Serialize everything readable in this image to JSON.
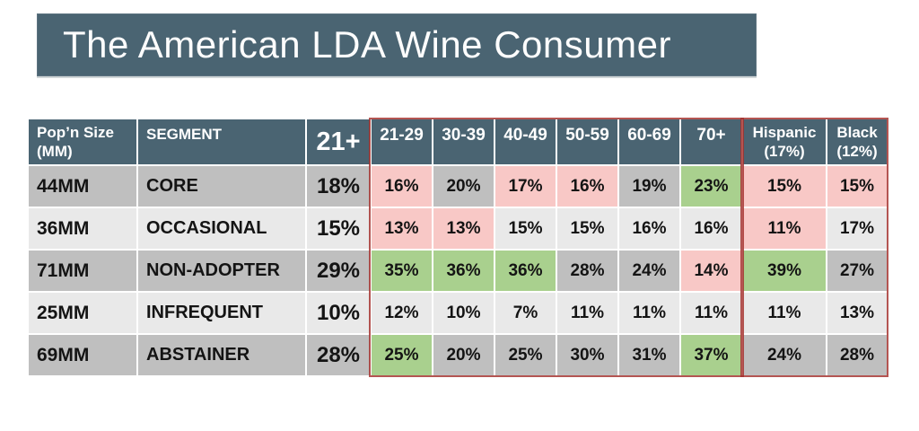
{
  "slide": {
    "title": "The American LDA Wine Consumer"
  },
  "colors": {
    "banner_bg": "#4A6472",
    "header_bg": "#4A6472",
    "row_dark": "#BFBFBF",
    "row_light": "#E9E9E9",
    "highlight_pink": "#F8C8C6",
    "highlight_green": "#A9D08E",
    "red_outline": "#A4302C",
    "title_text": "#FFFFFF"
  },
  "chart_data": {
    "type": "table",
    "title": "The American LDA Wine Consumer",
    "columns": [
      "Pop’n Size (MM)",
      "SEGMENT",
      "21+",
      "21-29",
      "30-39",
      "40-49",
      "50-59",
      "60-69",
      "70+",
      "Hispanic (17%)",
      "Black (12%)"
    ],
    "header": {
      "popn_line1": "Pop’n Size",
      "popn_line2": "(MM)",
      "segment": "SEGMENT",
      "total": "21+",
      "ages": [
        "21-29",
        "30-39",
        "40-49",
        "50-59",
        "60-69",
        "70+"
      ],
      "hispanic_line1": "Hispanic",
      "hispanic_line2": "(17%)",
      "black_line1": "Black",
      "black_line2": "(12%)"
    },
    "rows": [
      {
        "pop": "44MM",
        "segment": "CORE",
        "total": "18%",
        "cells": [
          {
            "v": "16%",
            "hl": "pink"
          },
          {
            "v": "20%",
            "hl": "none"
          },
          {
            "v": "17%",
            "hl": "pink"
          },
          {
            "v": "16%",
            "hl": "pink"
          },
          {
            "v": "19%",
            "hl": "none"
          },
          {
            "v": "23%",
            "hl": "green"
          },
          {
            "v": "15%",
            "hl": "pink"
          },
          {
            "v": "15%",
            "hl": "pink"
          }
        ]
      },
      {
        "pop": "36MM",
        "segment": "OCCASIONAL",
        "total": "15%",
        "cells": [
          {
            "v": "13%",
            "hl": "pink"
          },
          {
            "v": "13%",
            "hl": "pink"
          },
          {
            "v": "15%",
            "hl": "none"
          },
          {
            "v": "15%",
            "hl": "none"
          },
          {
            "v": "16%",
            "hl": "none"
          },
          {
            "v": "16%",
            "hl": "none"
          },
          {
            "v": "11%",
            "hl": "pink"
          },
          {
            "v": "17%",
            "hl": "none"
          }
        ]
      },
      {
        "pop": "71MM",
        "segment": "NON-ADOPTER",
        "total": "29%",
        "cells": [
          {
            "v": "35%",
            "hl": "green"
          },
          {
            "v": "36%",
            "hl": "green"
          },
          {
            "v": "36%",
            "hl": "green"
          },
          {
            "v": "28%",
            "hl": "none"
          },
          {
            "v": "24%",
            "hl": "none"
          },
          {
            "v": "14%",
            "hl": "pink"
          },
          {
            "v": "39%",
            "hl": "green"
          },
          {
            "v": "27%",
            "hl": "none"
          }
        ]
      },
      {
        "pop": "25MM",
        "segment": "INFREQUENT",
        "total": "10%",
        "cells": [
          {
            "v": "12%",
            "hl": "none"
          },
          {
            "v": "10%",
            "hl": "none"
          },
          {
            "v": "7%",
            "hl": "none"
          },
          {
            "v": "11%",
            "hl": "none"
          },
          {
            "v": "11%",
            "hl": "none"
          },
          {
            "v": "11%",
            "hl": "none"
          },
          {
            "v": "11%",
            "hl": "none"
          },
          {
            "v": "13%",
            "hl": "none"
          }
        ]
      },
      {
        "pop": "69MM",
        "segment": "ABSTAINER",
        "total": "28%",
        "cells": [
          {
            "v": "25%",
            "hl": "green"
          },
          {
            "v": "20%",
            "hl": "none"
          },
          {
            "v": "25%",
            "hl": "none"
          },
          {
            "v": "30%",
            "hl": "none"
          },
          {
            "v": "31%",
            "hl": "none"
          },
          {
            "v": "37%",
            "hl": "green"
          },
          {
            "v": "24%",
            "hl": "none"
          },
          {
            "v": "28%",
            "hl": "none"
          }
        ]
      }
    ]
  }
}
